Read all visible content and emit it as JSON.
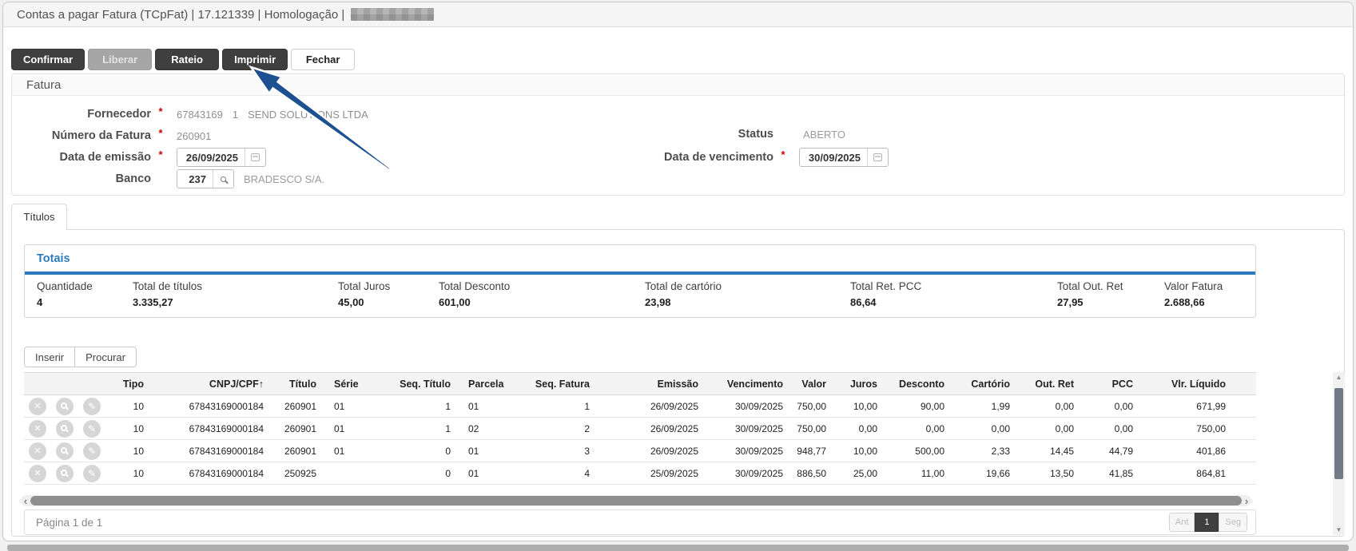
{
  "window": {
    "title": "Contas a pagar Fatura (TCpFat) | 17.121339 | Homologação |"
  },
  "toolbar": {
    "buttons": [
      {
        "label": "Confirmar"
      },
      {
        "label": "Liberar"
      },
      {
        "label": "Rateio"
      },
      {
        "label": "Imprimir"
      },
      {
        "label": "Fechar"
      }
    ]
  },
  "fatura": {
    "section_title": "Fatura",
    "required_mark": "*",
    "fornecedor": {
      "label": "Fornecedor",
      "code": "67843169",
      "unit": "1",
      "name": "SEND SOLUTIONS LTDA"
    },
    "numero": {
      "label": "Número da Fatura",
      "value": "260901"
    },
    "emissao": {
      "label": "Data de emissão",
      "value": "26/09/2025"
    },
    "banco": {
      "label": "Banco",
      "code": "237",
      "name": "BRADESCO S/A."
    },
    "status": {
      "label": "Status",
      "value": "ABERTO"
    },
    "vencimento": {
      "label": "Data de vencimento",
      "value": "30/09/2025"
    }
  },
  "tab": {
    "label": "Títulos"
  },
  "totais": {
    "title": "Totais",
    "items": [
      {
        "label": "Quantidade",
        "value": "4"
      },
      {
        "label": "Total de títulos",
        "value": "3.335,27"
      },
      {
        "label": "Total Juros",
        "value": "45,00"
      },
      {
        "label": "Total Desconto",
        "value": "601,00"
      },
      {
        "label": "Total de cartório",
        "value": "23,98"
      },
      {
        "label": "Total Ret. PCC",
        "value": "86,64"
      },
      {
        "label": "Total Out. Ret",
        "value": "27,95"
      },
      {
        "label": "Valor Fatura",
        "value": "2.688,66"
      }
    ]
  },
  "grid": {
    "actions": [
      {
        "label": "Inserir"
      },
      {
        "label": "Procurar"
      }
    ],
    "sort_icon": "↑",
    "columns": [
      "Tipo",
      "CNPJ/CPF",
      "Título",
      "Série",
      "Seq. Título",
      "Parcela",
      "Seq. Fatura",
      "Emissão",
      "Vencimento",
      "Valor",
      "Juros",
      "Desconto",
      "Cartório",
      "Out. Ret",
      "PCC",
      "Vlr. Líquido"
    ],
    "rows": [
      [
        "10",
        "67843169000184",
        "260901",
        "01",
        "1",
        "01",
        "1",
        "26/09/2025",
        "30/09/2025",
        "750,00",
        "10,00",
        "90,00",
        "1,99",
        "0,00",
        "0,00",
        "671,99"
      ],
      [
        "10",
        "67843169000184",
        "260901",
        "01",
        "1",
        "02",
        "2",
        "26/09/2025",
        "30/09/2025",
        "750,00",
        "0,00",
        "0,00",
        "0,00",
        "0,00",
        "0,00",
        "750,00"
      ],
      [
        "10",
        "67843169000184",
        "260901",
        "01",
        "0",
        "01",
        "3",
        "26/09/2025",
        "30/09/2025",
        "948,77",
        "10,00",
        "500,00",
        "2,33",
        "14,45",
        "44,79",
        "401,86"
      ],
      [
        "10",
        "67843169000184",
        "250925",
        "",
        "0",
        "01",
        "4",
        "25/09/2025",
        "30/09/2025",
        "886,50",
        "25,00",
        "11,00",
        "19,66",
        "13,50",
        "41,85",
        "864,81"
      ]
    ]
  },
  "footer": {
    "page_info": "Página 1 de 1",
    "pagination": {
      "prev": "Ant",
      "current": "1",
      "next": "Seg"
    }
  },
  "colors": {
    "accent": "#2b7bb9",
    "arrow": "#1d5091",
    "btn_dark": "#3f3f3f",
    "required": "#cc0000"
  }
}
